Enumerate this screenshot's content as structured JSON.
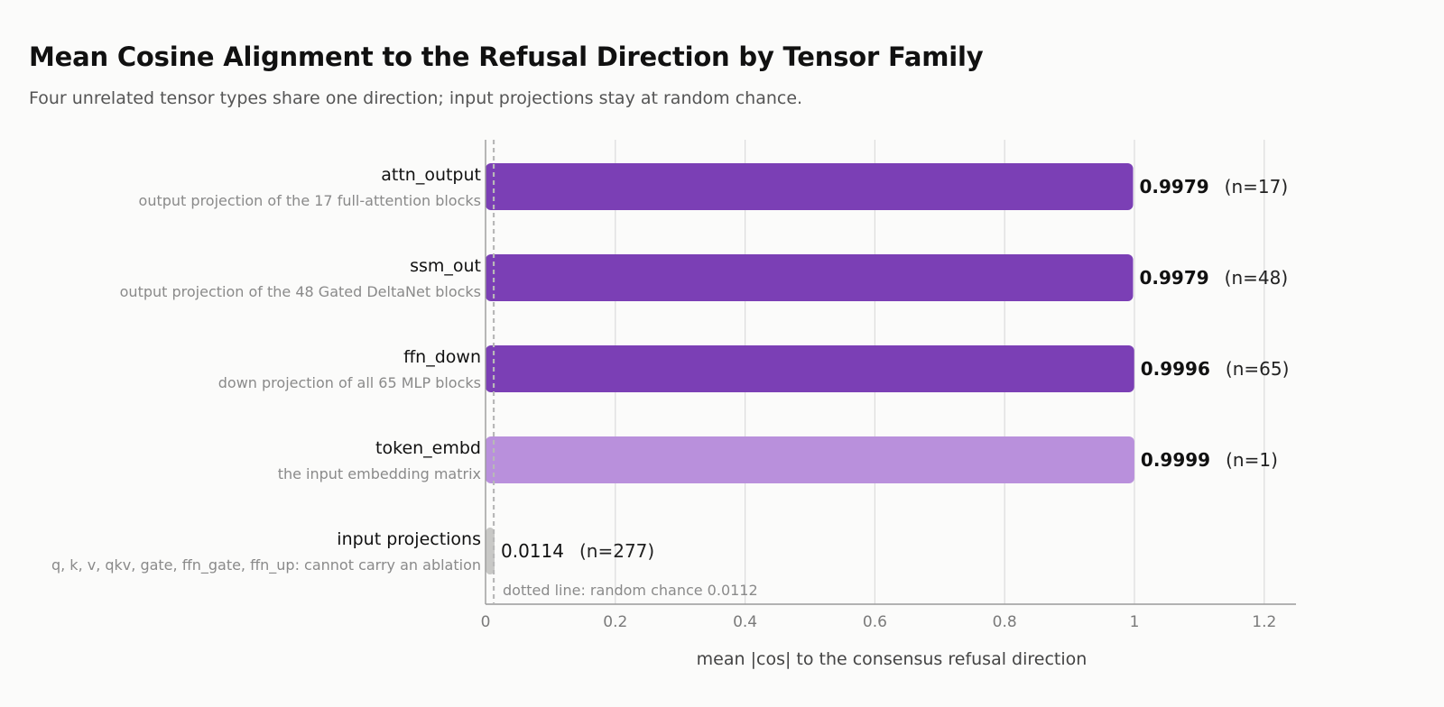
{
  "title": "Mean Cosine Alignment to the Refusal Direction by Tensor Family",
  "subtitle": "Four unrelated tensor types share one direction; input projections stay at random chance.",
  "chart_data": {
    "type": "bar",
    "orientation": "horizontal",
    "categories": [
      "attn_output",
      "ssm_out",
      "ffn_down",
      "token_embd",
      "input projections"
    ],
    "descriptions": [
      "output projection of the 17 full-attention blocks",
      "output projection of the 48 Gated DeltaNet blocks",
      "down projection of all 65 MLP blocks",
      "the input embedding matrix",
      "q, k, v, qkv, gate, ffn_gate, ffn_up: cannot carry an ablation"
    ],
    "values": [
      0.9979,
      0.9979,
      0.9996,
      0.9999,
      0.0114
    ],
    "value_labels": [
      "0.9979",
      "0.9979",
      "0.9996",
      "0.9999",
      "0.0114"
    ],
    "counts": [
      "(n=17)",
      "(n=48)",
      "(n=65)",
      "(n=1)",
      "(n=277)"
    ],
    "bar_colors": [
      "#7b3fb5",
      "#7b3fb5",
      "#7b3fb5",
      "#b990dc",
      "#c8c8c6"
    ],
    "bold_value_labels": [
      true,
      true,
      true,
      true,
      false
    ],
    "xlabel": "mean |cos| to the consensus refusal direction",
    "xlim": [
      0,
      1.25
    ],
    "xticks": [
      0,
      0.2,
      0.4,
      0.6,
      0.8,
      1,
      1.2
    ],
    "xtick_labels": [
      "0",
      "0.2",
      "0.4",
      "0.6",
      "0.8",
      "1",
      "1.2"
    ],
    "reference_line": {
      "value": 0.0112,
      "label": "dotted line: random chance 0.0112",
      "style": "dotted"
    },
    "grid": "vertical"
  }
}
